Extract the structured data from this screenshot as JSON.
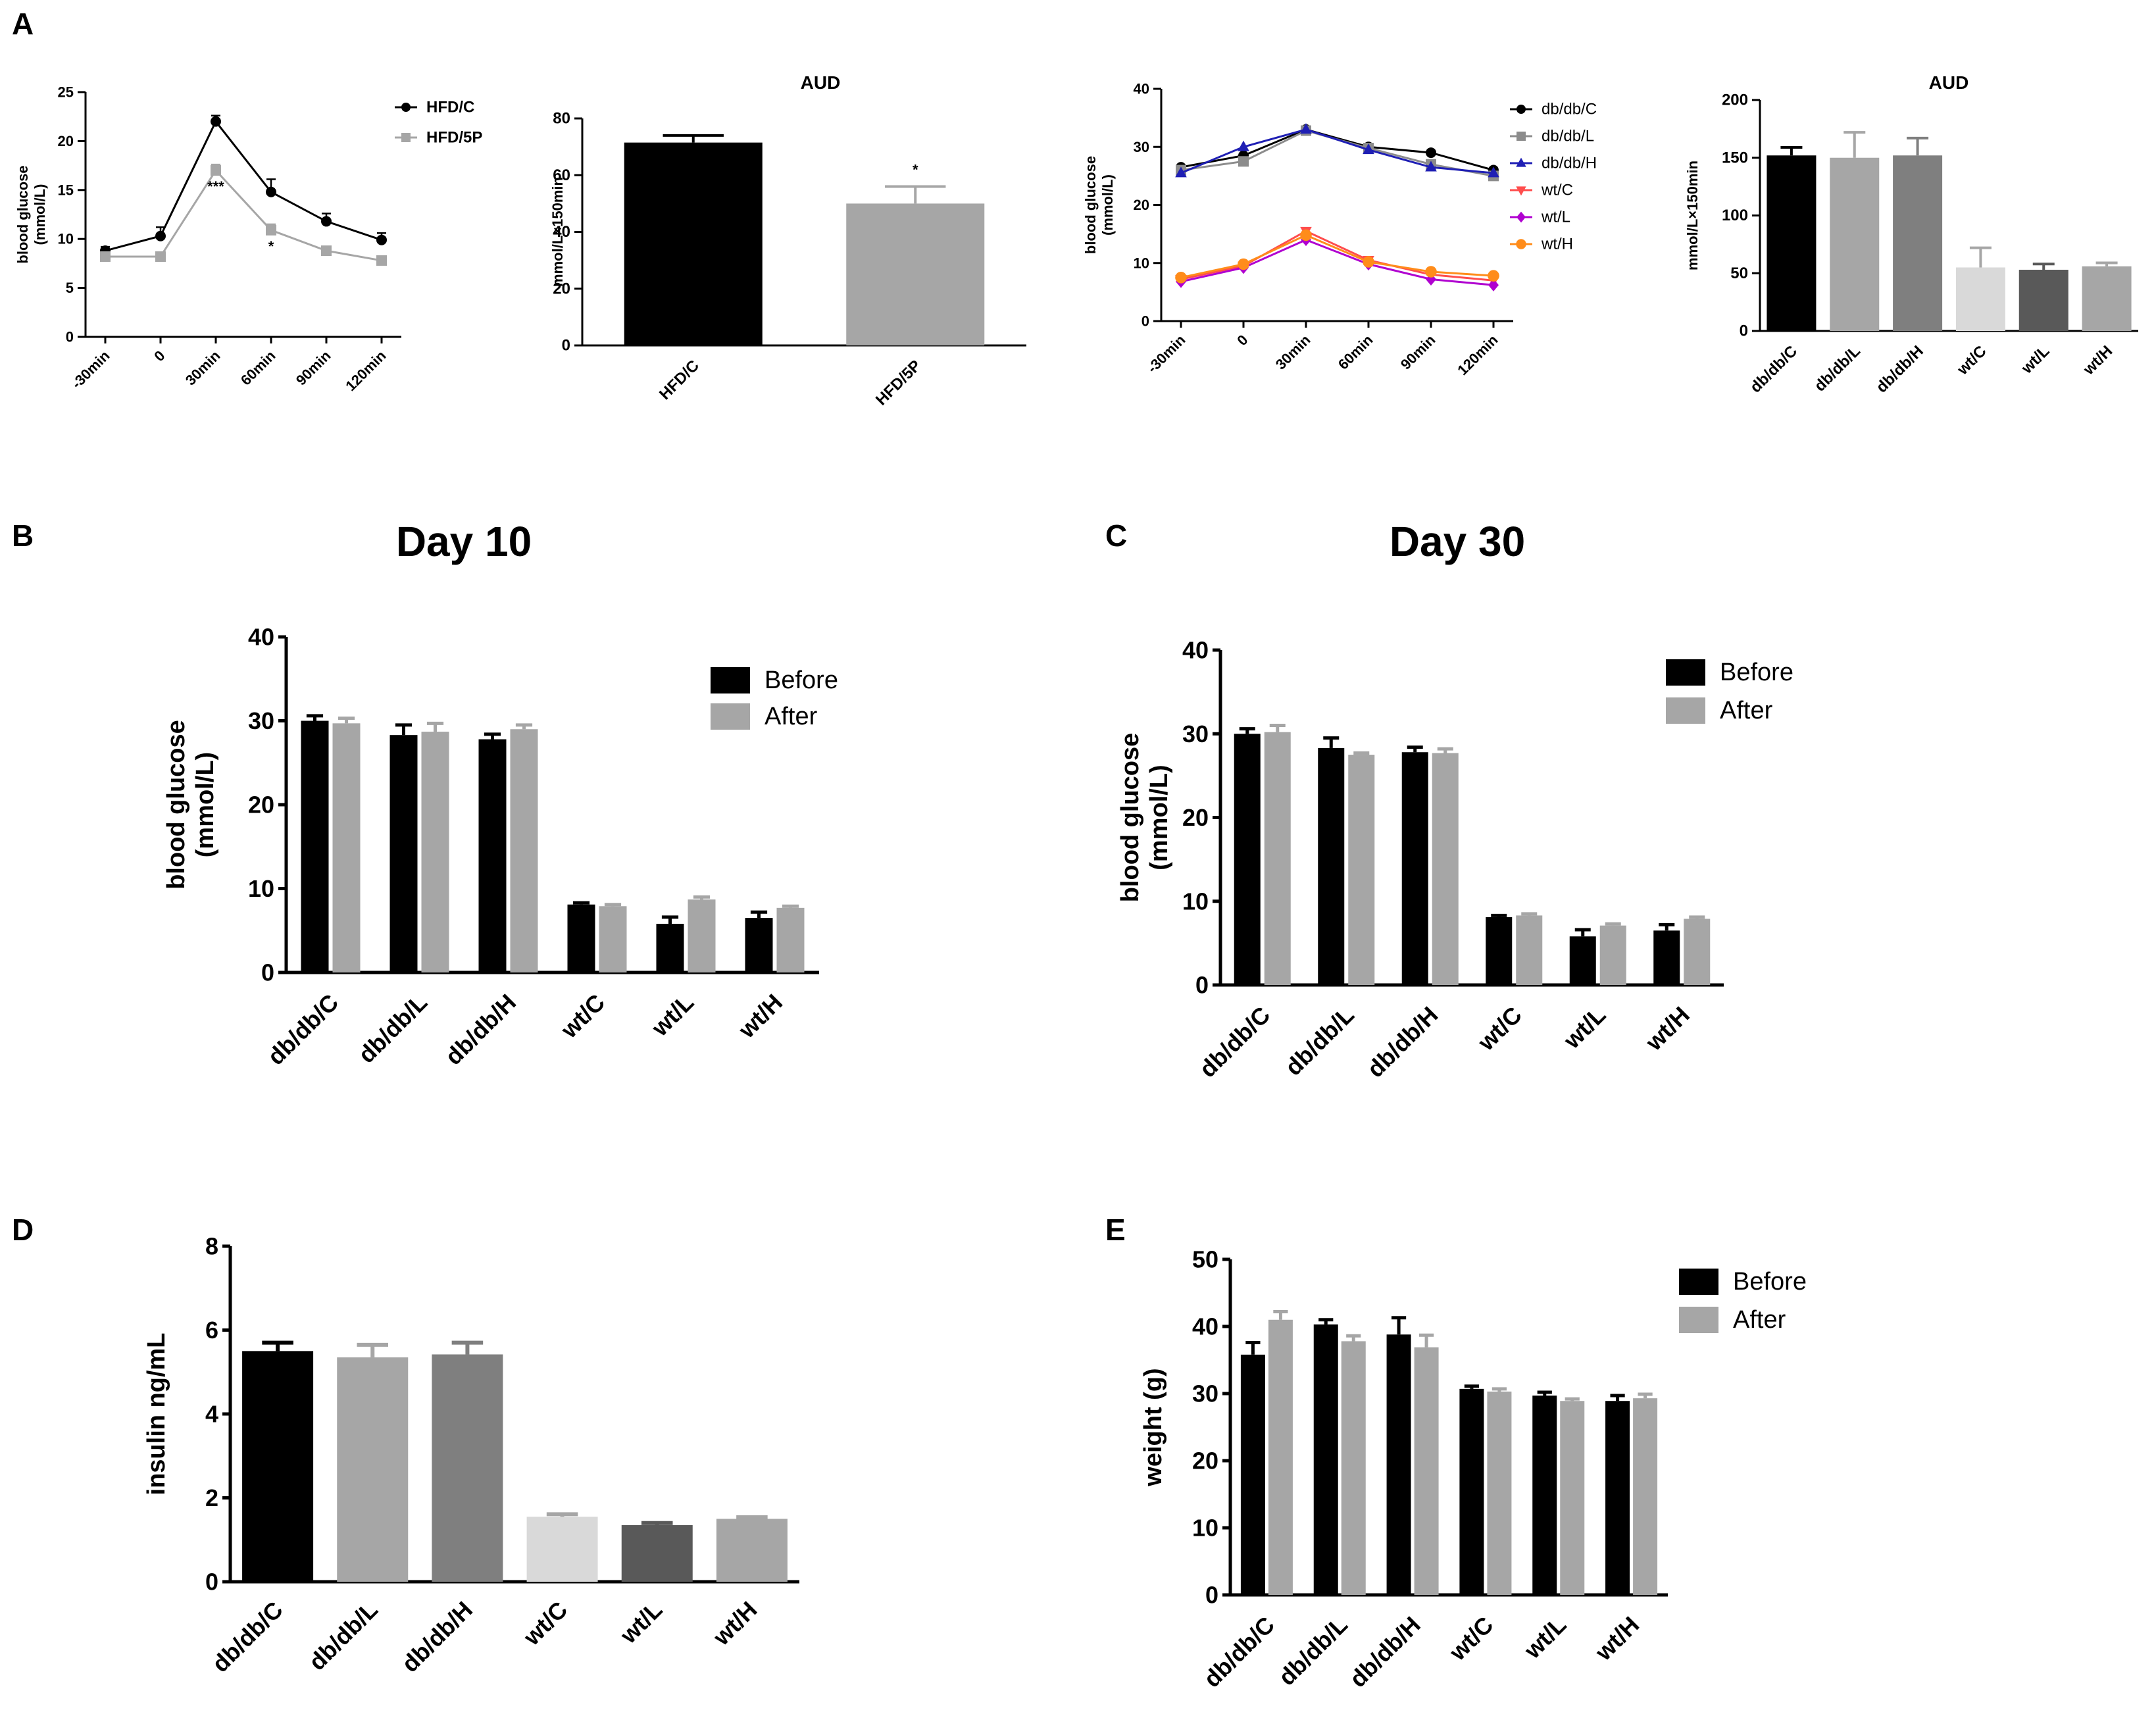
{
  "chart_data": [
    {
      "id": "A1",
      "panel_label": "A",
      "type": "line",
      "title": "",
      "xlabel": "",
      "ylabel": "blood glucose\n(mmol/L)",
      "ylim": [
        0,
        25
      ],
      "yticks": [
        0,
        5,
        10,
        15,
        20,
        25
      ],
      "categories": [
        "-30min",
        "0",
        "30min",
        "60min",
        "90min",
        "120min"
      ],
      "series": [
        {
          "name": "HFD/C",
          "color": "#000000",
          "marker": "circle",
          "values": [
            8.8,
            10.3,
            22.0,
            14.8,
            11.8,
            9.9
          ],
          "errors": [
            0.4,
            0.9,
            0.6,
            1.3,
            0.8,
            0.7
          ]
        },
        {
          "name": "HFD/5P",
          "color": "#a6a6a6",
          "marker": "square",
          "values": [
            8.2,
            8.2,
            17.0,
            10.9,
            8.8,
            7.8
          ],
          "errors": [
            0.2,
            0.3,
            0.6,
            0.6,
            0.4,
            0.3
          ]
        }
      ],
      "annotations": [
        {
          "text": "***",
          "x": "30min"
        },
        {
          "text": "*",
          "x": "60min"
        }
      ]
    },
    {
      "id": "A2",
      "type": "bar",
      "title": "AUD",
      "xlabel": "",
      "ylabel": "mmol/L×150min",
      "ylim": [
        0,
        80
      ],
      "yticks": [
        0,
        20,
        40,
        60,
        80
      ],
      "categories": [
        "HFD/C",
        "HFD/5P"
      ],
      "values": [
        71.5,
        50.0
      ],
      "errors": [
        2.5,
        6.0
      ],
      "colors": [
        "#000000",
        "#a6a6a6"
      ],
      "annotations": [
        {
          "text": "*",
          "x": "HFD/5P"
        }
      ]
    },
    {
      "id": "A3",
      "type": "line",
      "title": "",
      "xlabel": "",
      "ylabel": "blood glucose\n(mmol/L)",
      "ylim": [
        0,
        40
      ],
      "yticks": [
        0,
        10,
        20,
        30,
        40
      ],
      "categories": [
        "-30min",
        "0",
        "30min",
        "60min",
        "90min",
        "120min"
      ],
      "series": [
        {
          "name": "db/db/C",
          "color": "#000000",
          "marker": "circle",
          "values": [
            26.5,
            28.5,
            33.0,
            30.0,
            29.0,
            26.0
          ]
        },
        {
          "name": "db/db/L",
          "color": "#8c8c8c",
          "marker": "square",
          "values": [
            26.0,
            27.5,
            32.8,
            29.8,
            27.0,
            25.0
          ]
        },
        {
          "name": "db/db/H",
          "color": "#1f1fb4",
          "marker": "triangle-up",
          "values": [
            25.5,
            30.0,
            33.0,
            29.5,
            26.5,
            25.5
          ]
        },
        {
          "name": "wt/C",
          "color": "#ff4d4d",
          "marker": "triangle-down",
          "values": [
            7.2,
            9.5,
            15.5,
            10.5,
            8.0,
            7.0
          ]
        },
        {
          "name": "wt/L",
          "color": "#b000d0",
          "marker": "diamond",
          "values": [
            6.8,
            9.2,
            14.0,
            9.8,
            7.2,
            6.2
          ]
        },
        {
          "name": "wt/H",
          "color": "#ff8c1a",
          "marker": "hexagon",
          "values": [
            7.5,
            9.8,
            14.8,
            10.2,
            8.5,
            7.8
          ]
        }
      ]
    },
    {
      "id": "A4",
      "type": "bar",
      "title": "AUD",
      "xlabel": "",
      "ylabel": "mmol/L×150min",
      "ylim": [
        0,
        200
      ],
      "yticks": [
        0,
        50,
        100,
        150,
        200
      ],
      "categories": [
        "db/db/C",
        "db/db/L",
        "db/db/H",
        "wt/C",
        "wt/L",
        "wt/H"
      ],
      "values": [
        152,
        150,
        152,
        55,
        53,
        56
      ],
      "errors": [
        7,
        22,
        15,
        17,
        5,
        3
      ],
      "colors": [
        "#000000",
        "#a6a6a6",
        "#7f7f7f",
        "#d9d9d9",
        "#595959",
        "#a6a6a6"
      ]
    },
    {
      "id": "B",
      "panel_label": "B",
      "type": "bar",
      "title": "Day 10",
      "xlabel": "",
      "ylabel": "blood glucose\n(mmol/L)",
      "ylim": [
        0,
        40
      ],
      "yticks": [
        0,
        10,
        20,
        30,
        40
      ],
      "categories": [
        "db/db/C",
        "db/db/L",
        "db/db/H",
        "wt/C",
        "wt/L",
        "wt/H"
      ],
      "series": [
        {
          "name": "Before",
          "color": "#000000",
          "values": [
            30.0,
            28.3,
            27.8,
            8.1,
            5.8,
            6.5
          ],
          "errors": [
            0.6,
            1.2,
            0.6,
            0.2,
            0.8,
            0.7
          ]
        },
        {
          "name": "After",
          "color": "#a6a6a6",
          "values": [
            29.7,
            28.7,
            29.0,
            7.9,
            8.7,
            7.7
          ],
          "errors": [
            0.6,
            1.0,
            0.5,
            0.2,
            0.3,
            0.2
          ]
        }
      ]
    },
    {
      "id": "C",
      "panel_label": "C",
      "type": "bar",
      "title": "Day 30",
      "xlabel": "",
      "ylabel": "blood glucose\n(mmol/L)",
      "ylim": [
        0,
        40
      ],
      "yticks": [
        0,
        10,
        20,
        30,
        40
      ],
      "categories": [
        "db/db/C",
        "db/db/L",
        "db/db/H",
        "wt/C",
        "wt/L",
        "wt/H"
      ],
      "series": [
        {
          "name": "Before",
          "color": "#000000",
          "values": [
            30.0,
            28.3,
            27.8,
            8.1,
            5.8,
            6.5
          ],
          "errors": [
            0.6,
            1.2,
            0.6,
            0.2,
            0.8,
            0.7
          ]
        },
        {
          "name": "After",
          "color": "#a6a6a6",
          "values": [
            30.2,
            27.5,
            27.7,
            8.3,
            7.1,
            7.9
          ],
          "errors": [
            0.8,
            0.2,
            0.5,
            0.2,
            0.2,
            0.2
          ]
        }
      ]
    },
    {
      "id": "D",
      "panel_label": "D",
      "type": "bar",
      "title": "",
      "xlabel": "",
      "ylabel": "insulin ng/mL",
      "ylim": [
        0,
        8
      ],
      "yticks": [
        0,
        2,
        4,
        6,
        8
      ],
      "categories": [
        "db/db/C",
        "db/db/L",
        "db/db/H",
        "wt/C",
        "wt/L",
        "wt/H"
      ],
      "values": [
        5.5,
        5.35,
        5.42,
        1.55,
        1.35,
        1.5
      ],
      "errors": [
        0.2,
        0.3,
        0.28,
        0.06,
        0.05,
        0.04
      ],
      "colors": [
        "#000000",
        "#a6a6a6",
        "#7f7f7f",
        "#d9d9d9",
        "#595959",
        "#a6a6a6"
      ]
    },
    {
      "id": "E",
      "panel_label": "E",
      "type": "bar",
      "title": "",
      "xlabel": "",
      "ylabel": "weight (g)",
      "ylim": [
        0,
        50
      ],
      "yticks": [
        0,
        10,
        20,
        30,
        40,
        50
      ],
      "categories": [
        "db/db/C",
        "db/db/L",
        "db/db/H",
        "wt/C",
        "wt/L",
        "wt/H"
      ],
      "series": [
        {
          "name": "Before",
          "color": "#000000",
          "values": [
            35.8,
            40.3,
            38.8,
            30.7,
            29.7,
            28.9
          ],
          "errors": [
            1.8,
            0.7,
            2.5,
            0.4,
            0.5,
            0.8
          ]
        },
        {
          "name": "After",
          "color": "#a6a6a6",
          "values": [
            41.0,
            37.8,
            36.9,
            30.3,
            28.9,
            29.3
          ],
          "errors": [
            1.2,
            0.8,
            1.8,
            0.4,
            0.3,
            0.6
          ]
        }
      ]
    }
  ]
}
